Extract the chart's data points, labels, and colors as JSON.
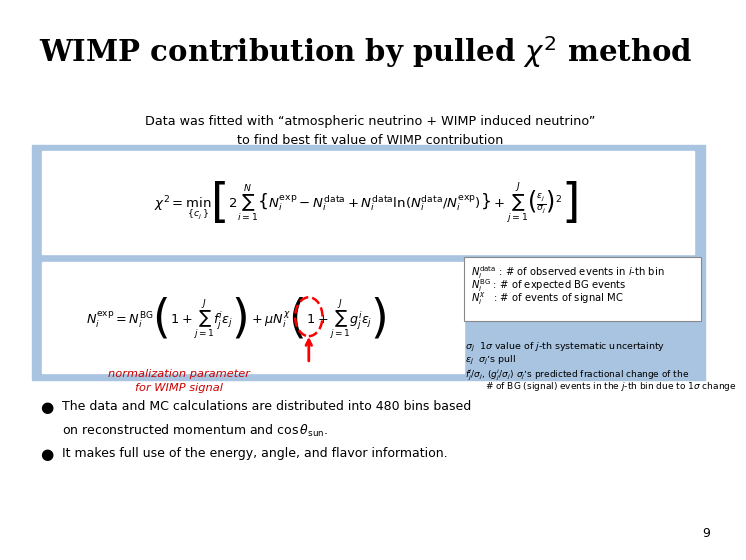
{
  "title": "WIMP contribution by pulled $\\chi^2$ method",
  "subtitle_line1": "Data was fitted with “atmospheric neutrino + WIMP induced neutrino”",
  "subtitle_line2": "to find best fit value of WIMP contribution",
  "annotation_text": "normalization parameter\nfor WIMP signal",
  "legend1": "$N_i^{\\rm data}$ : # of observed events in $i$-th bin",
  "legend2": "$N_i^{\\rm BG}$ : # of expected BG events",
  "legend3": "$N_i^{\\chi}$   : # of events of signal MC",
  "syst1_label": "$\\sigma_j$",
  "syst1_text": "  $1\\sigma$ value of $j$-th systematic uncertainty",
  "syst2_label": "$\\epsilon_j$",
  "syst2_text": "  $\\sigma_j$’s pull",
  "syst3_label": "$f^i_j/\\sigma_j$, $(g^i_j/\\sigma_j)$",
  "syst3_text": " $\\sigma_j$’s predicted fractional change of the",
  "syst4_text": "# of BG (signal) events in the $j$-th bin due to $1\\sigma$ change",
  "bullet1": "The data and MC calculations are distributed into 480 bins based",
  "bullet1b": "on reconstructed momentum and $\\cos\\theta_{\\rm sun}$.",
  "bullet2": "It makes full use of the energy, angle, and flavor information.",
  "page_number": "9",
  "bg_color": "#ffffff",
  "box_color": "#a8c4e0",
  "title_color": "#000000",
  "annotation_color": "#cc0000"
}
